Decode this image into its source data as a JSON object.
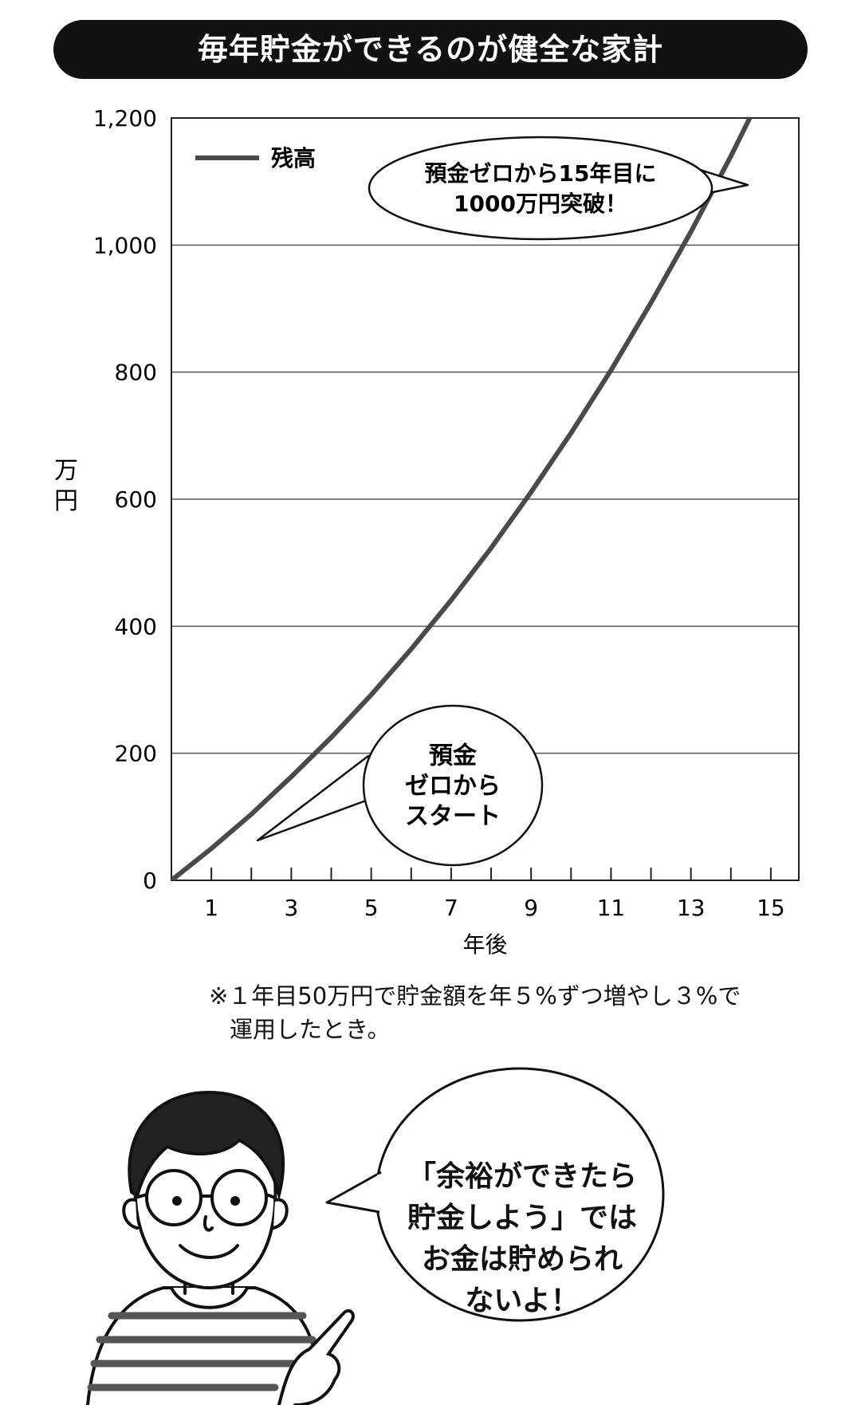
{
  "title": "毎年貯金ができるのが健全な家計",
  "chart_data": {
    "type": "line",
    "x": [
      0,
      1,
      2,
      3,
      4,
      5,
      6,
      7,
      8,
      9,
      10,
      11,
      12,
      13,
      14,
      15
    ],
    "series": [
      {
        "name": "残高",
        "values": [
          0,
          50,
          104,
          163,
          225,
          292,
          364,
          441,
          523,
          611,
          704,
          803,
          909,
          1021,
          1140,
          1267
        ]
      }
    ],
    "xlabel": "年後",
    "ylabel": "万円",
    "xlim": [
      0,
      15.7
    ],
    "ylim": [
      0,
      1200
    ],
    "xticks": [
      1,
      3,
      5,
      7,
      9,
      11,
      13,
      15
    ],
    "yticks": [
      0,
      200,
      400,
      600,
      800,
      1000,
      1200
    ],
    "ytick_labels": [
      "0",
      "200",
      "400",
      "600",
      "800",
      "1,000",
      "1,200"
    ],
    "grid": "horizontal",
    "legend": "top-left",
    "line_color": "#4a4a4a",
    "annotations": {
      "top": [
        "預金ゼロから15年目に",
        "1000万円突破！"
      ],
      "bottom": [
        "預金",
        "ゼロから",
        "スタート"
      ]
    }
  },
  "note": {
    "line1": "※１年目50万円で貯金額を年５%ずつ増やし３%で",
    "line2": "運用したとき。"
  },
  "speech": [
    "「余裕ができたら",
    "貯金しよう」では",
    "お金は貯められ",
    "ないよ！"
  ]
}
